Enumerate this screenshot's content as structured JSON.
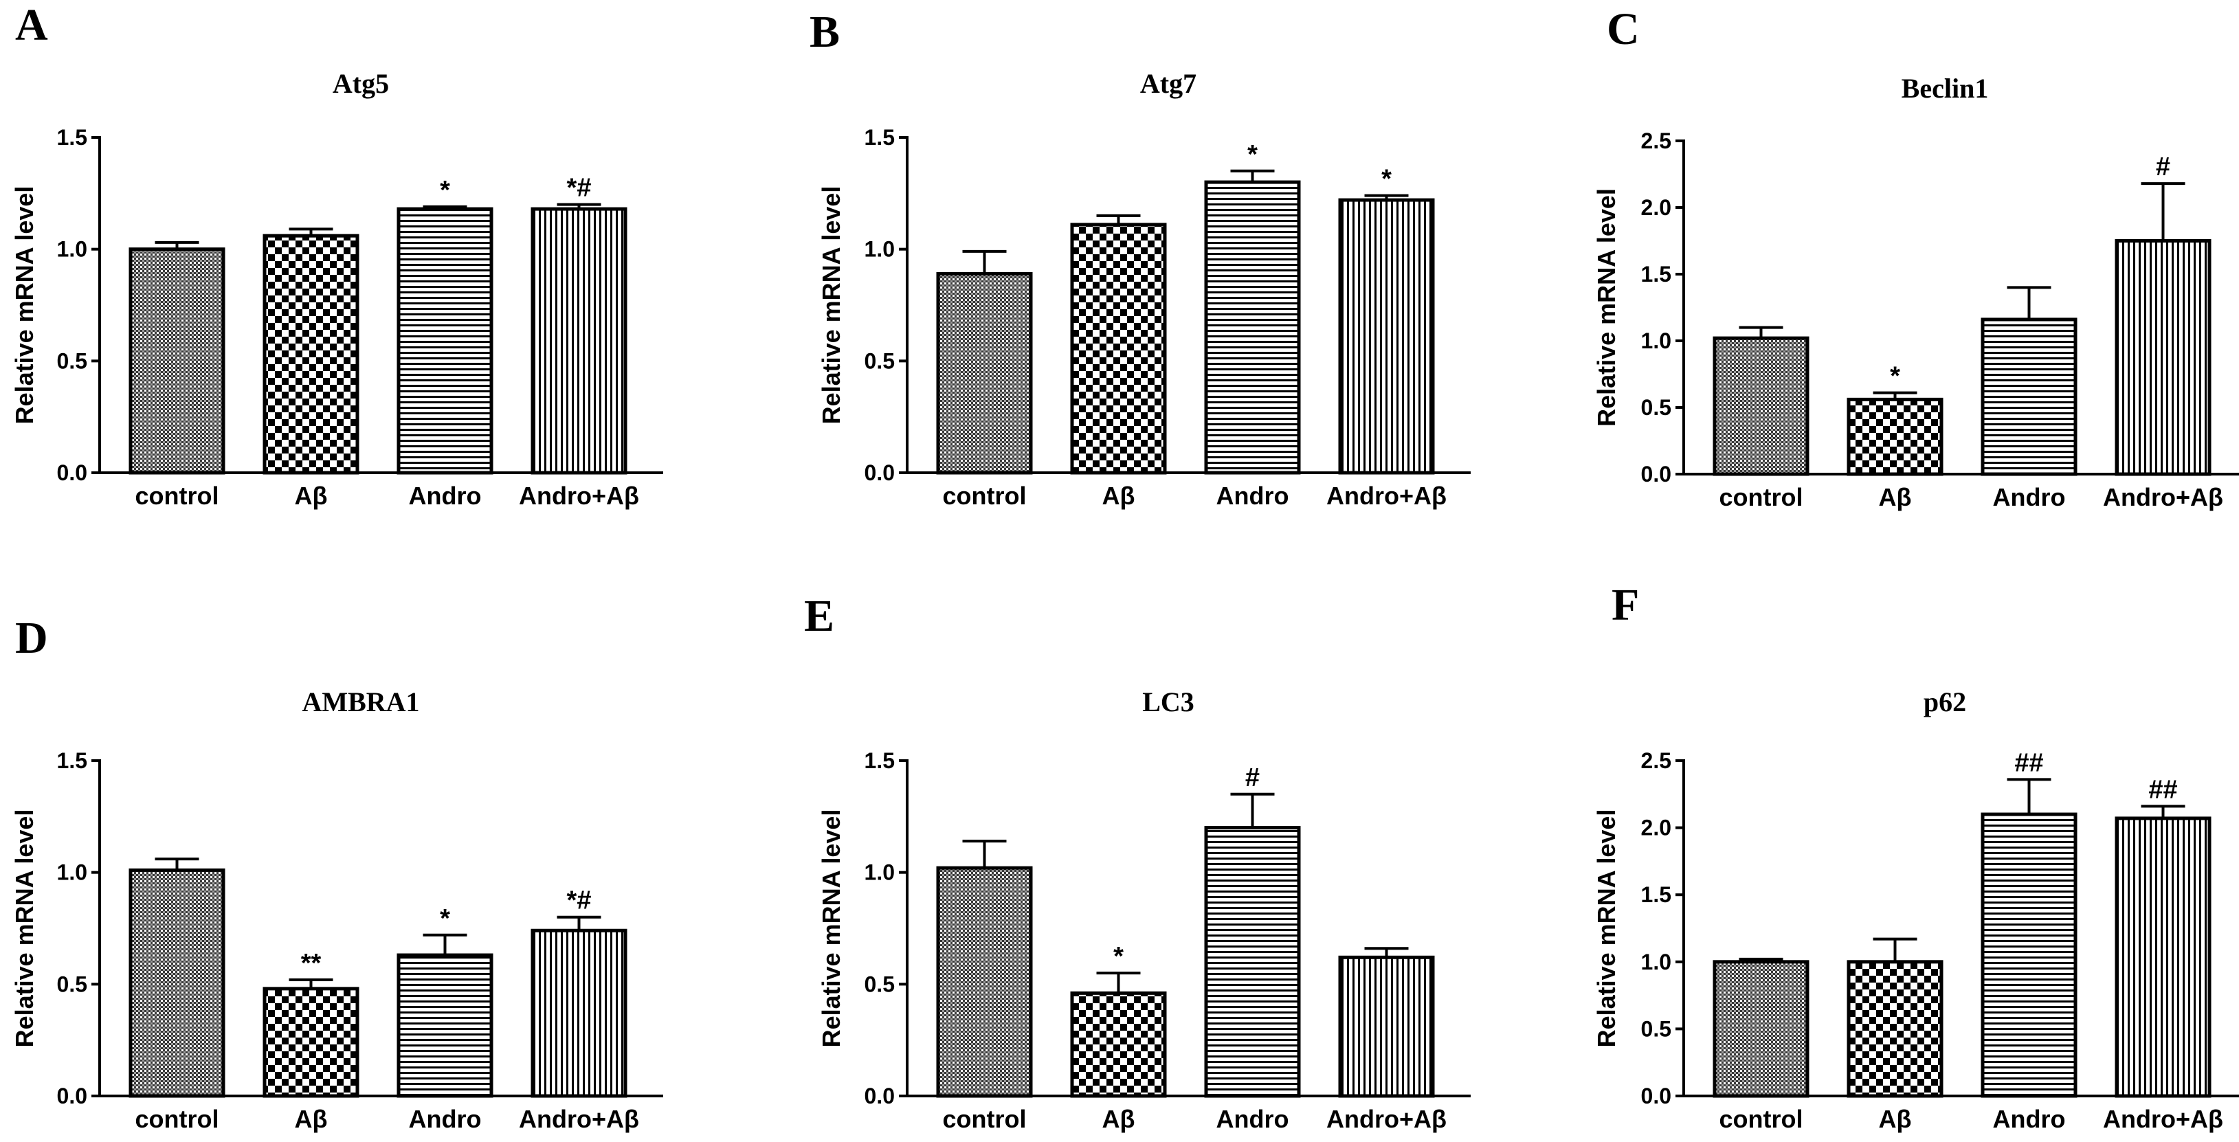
{
  "figure": {
    "panel_order": [
      "A",
      "B",
      "C",
      "D",
      "E",
      "F"
    ]
  },
  "chart_data": [
    {
      "panel": "A",
      "type": "bar",
      "title": "Atg5",
      "ylabel": "Relative mRNA level",
      "ylim": [
        0,
        1.5
      ],
      "yticks": [
        "0.0",
        "0.5",
        "1.0",
        "1.5"
      ],
      "categories": [
        "control",
        "Aβ",
        "Andro",
        "Andro+Aβ"
      ],
      "values": [
        1.0,
        1.06,
        1.18,
        1.18
      ],
      "errors": [
        0.03,
        0.03,
        0.01,
        0.02
      ],
      "annotations": [
        "",
        "",
        "*",
        "*#"
      ],
      "patterns": [
        "fine",
        "checker",
        "hlines",
        "vlines"
      ]
    },
    {
      "panel": "B",
      "type": "bar",
      "title": "Atg7",
      "ylabel": "Relative mRNA level",
      "ylim": [
        0,
        1.5
      ],
      "yticks": [
        "0.0",
        "0.5",
        "1.0",
        "1.5"
      ],
      "categories": [
        "control",
        "Aβ",
        "Andro",
        "Andro+Aβ"
      ],
      "values": [
        0.89,
        1.11,
        1.3,
        1.22
      ],
      "errors": [
        0.1,
        0.04,
        0.05,
        0.02
      ],
      "annotations": [
        "",
        "",
        "*",
        "*"
      ],
      "patterns": [
        "fine",
        "checker",
        "hlines",
        "vlines"
      ]
    },
    {
      "panel": "C",
      "type": "bar",
      "title": "Beclin1",
      "ylabel": "Relative mRNA level",
      "ylim": [
        0,
        2.5
      ],
      "yticks": [
        "0.0",
        "0.5",
        "1.0",
        "1.5",
        "2.0",
        "2.5"
      ],
      "categories": [
        "control",
        "Aβ",
        "Andro",
        "Andro+Aβ"
      ],
      "values": [
        1.02,
        0.56,
        1.16,
        1.75
      ],
      "errors": [
        0.08,
        0.05,
        0.24,
        0.43
      ],
      "annotations": [
        "",
        "*",
        "",
        "#"
      ],
      "patterns": [
        "fine",
        "checker",
        "hlines",
        "vlines"
      ]
    },
    {
      "panel": "D",
      "type": "bar",
      "title": "AMBRA1",
      "ylabel": "Relative mRNA level",
      "ylim": [
        0,
        1.5
      ],
      "yticks": [
        "0.0",
        "0.5",
        "1.0",
        "1.5"
      ],
      "categories": [
        "control",
        "Aβ",
        "Andro",
        "Andro+Aβ"
      ],
      "values": [
        1.01,
        0.48,
        0.63,
        0.74
      ],
      "errors": [
        0.05,
        0.04,
        0.09,
        0.06
      ],
      "annotations": [
        "",
        "**",
        "*",
        "*#"
      ],
      "patterns": [
        "fine",
        "checker",
        "hlines",
        "vlines"
      ]
    },
    {
      "panel": "E",
      "type": "bar",
      "title": "LC3",
      "ylabel": "Relative mRNA level",
      "ylim": [
        0,
        1.5
      ],
      "yticks": [
        "0.0",
        "0.5",
        "1.0",
        "1.5"
      ],
      "categories": [
        "control",
        "Aβ",
        "Andro",
        "Andro+Aβ"
      ],
      "values": [
        1.02,
        0.46,
        1.2,
        0.62
      ],
      "errors": [
        0.12,
        0.09,
        0.15,
        0.04
      ],
      "annotations": [
        "",
        "*",
        "#",
        ""
      ],
      "patterns": [
        "fine",
        "checker",
        "hlines",
        "vlines"
      ]
    },
    {
      "panel": "F",
      "type": "bar",
      "title": "p62",
      "ylabel": "Relative mRNA level",
      "ylim": [
        0,
        2.5
      ],
      "yticks": [
        "0.0",
        "0.5",
        "1.0",
        "1.5",
        "2.0",
        "2.5"
      ],
      "categories": [
        "control",
        "Aβ",
        "Andro",
        "Andro+Aβ"
      ],
      "values": [
        1.0,
        1.0,
        2.1,
        2.07
      ],
      "errors": [
        0.02,
        0.17,
        0.26,
        0.09
      ],
      "annotations": [
        "",
        "",
        "##",
        "##"
      ],
      "patterns": [
        "fine",
        "checker",
        "hlines",
        "vlines"
      ]
    }
  ]
}
